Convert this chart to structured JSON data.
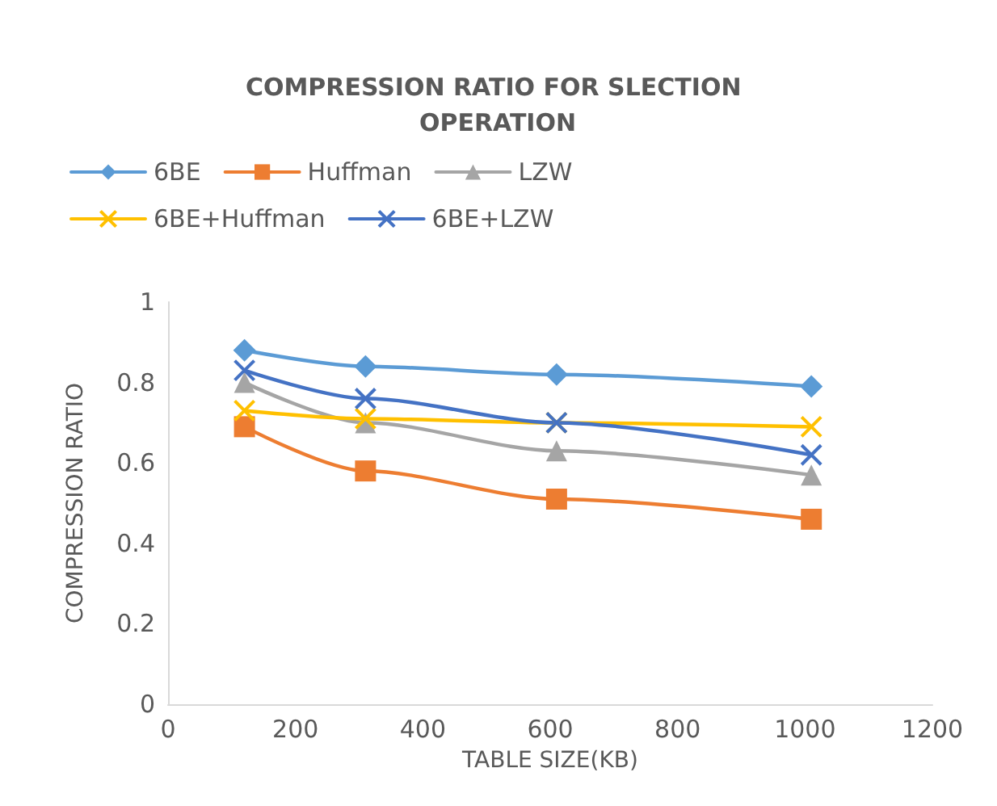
{
  "chart_data": {
    "type": "line",
    "title": "COMPRESSION RATIO FOR SLECTION OPERATION",
    "xlabel": "TABLE SIZE(KB)",
    "ylabel": "COMPRESSION RATIO",
    "x": [
      120,
      310,
      610,
      1010
    ],
    "series": [
      {
        "name": "6BE",
        "color": "#5b9bd5",
        "marker": "diamond",
        "values": [
          0.88,
          0.84,
          0.82,
          0.79
        ]
      },
      {
        "name": "Huffman",
        "color": "#ed7d31",
        "marker": "square",
        "values": [
          0.69,
          0.58,
          0.51,
          0.46
        ]
      },
      {
        "name": "LZW",
        "color": "#a5a5a5",
        "marker": "triangle",
        "values": [
          0.8,
          0.7,
          0.63,
          0.57
        ]
      },
      {
        "name": "6BE+Huffman",
        "color": "#ffc000",
        "marker": "cross",
        "values": [
          0.73,
          0.71,
          0.7,
          0.69
        ]
      },
      {
        "name": "6BE+LZW",
        "color": "#4472c4",
        "marker": "cross",
        "values": [
          0.83,
          0.76,
          0.7,
          0.62
        ]
      }
    ],
    "xlim": [
      0,
      1200
    ],
    "xticks": [
      0,
      200,
      400,
      600,
      800,
      1000,
      1200
    ],
    "ylim": [
      0,
      1
    ],
    "yticks": [
      0,
      0.2,
      0.4,
      0.6,
      0.8,
      1
    ],
    "grid": false,
    "legend": "top",
    "line_style": "solid"
  }
}
